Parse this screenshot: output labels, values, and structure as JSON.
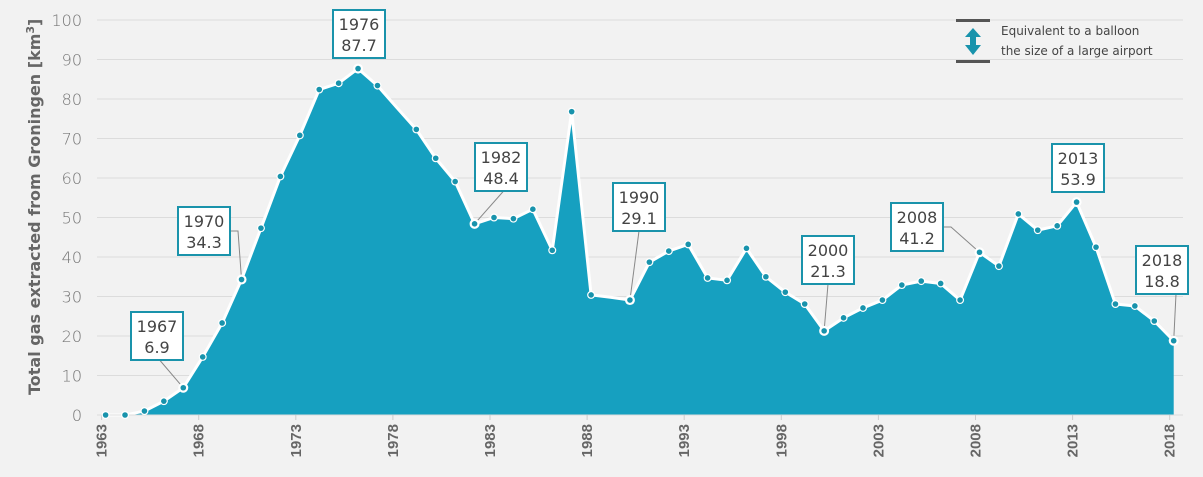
{
  "chart_data": {
    "type": "area",
    "title": "",
    "ylabel": "Total gas extracted from Groningen  [km",
    "ylabel_sup": "3",
    "ylabel_end": "]",
    "xlabel": "",
    "ylim": [
      0,
      100
    ],
    "yticks": [
      0,
      10,
      20,
      30,
      40,
      50,
      60,
      70,
      80,
      90,
      100
    ],
    "xticks": [
      "1963",
      "1968",
      "1973",
      "1978",
      "1983",
      "1988",
      "1993",
      "1998",
      "2003",
      "2008",
      "2013",
      "2018"
    ],
    "grid": true,
    "x": [
      1963,
      1964,
      1965,
      1966,
      1967,
      1968,
      1969,
      1970,
      1971,
      1972,
      1973,
      1974,
      1975,
      1976,
      1977,
      1978,
      1979,
      1980,
      1981,
      1982,
      1983,
      1984,
      1985,
      1986,
      1987,
      1988,
      1989,
      1990,
      1991,
      1992,
      1993,
      1994,
      1995,
      1996,
      1997,
      1998,
      1999,
      2000,
      2001,
      2002,
      2003,
      2004,
      2005,
      2006,
      2007,
      2008,
      2009,
      2010,
      2011,
      2012,
      2013,
      2014,
      2015,
      2016,
      2017,
      2018
    ],
    "values": [
      0,
      0,
      1.0,
      3.5,
      6.9,
      14.7,
      23.3,
      34.3,
      47.3,
      60.4,
      70.8,
      82.4,
      84.0,
      87.7,
      83.4,
      77.8,
      72.3,
      65.0,
      59.1,
      48.4,
      50.0,
      49.7,
      52.1,
      41.7,
      76.8,
      30.4,
      29.8,
      29.1,
      38.7,
      41.5,
      43.2,
      34.7,
      34.1,
      42.2,
      35.0,
      31.1,
      28.1,
      21.3,
      24.6,
      27.1,
      29.1,
      32.9,
      33.9,
      33.3,
      29.1,
      41.2,
      37.7,
      50.9,
      46.8,
      47.9,
      53.9,
      42.5,
      28.1,
      27.6,
      23.8,
      18.8
    ],
    "annotations": [
      {
        "year": "1967",
        "value": "6.9"
      },
      {
        "year": "1970",
        "value": "34.3"
      },
      {
        "year": "1976",
        "value": "87.7"
      },
      {
        "year": "1982",
        "value": "48.4"
      },
      {
        "year": "1990",
        "value": "29.1"
      },
      {
        "year": "2000",
        "value": "21.3"
      },
      {
        "year": "2008",
        "value": "41.2"
      },
      {
        "year": "2013",
        "value": "53.9"
      },
      {
        "year": "2018",
        "value": "18.8"
      }
    ],
    "legend": {
      "line1": "Equivalent to a balloon",
      "line2": "the size of a large airport",
      "icon": "double-arrow-scale-icon"
    },
    "colors": {
      "area": "#16a0c0",
      "line": "#ffffff",
      "dot": "#1893ac",
      "box": "#1a93ab"
    }
  }
}
